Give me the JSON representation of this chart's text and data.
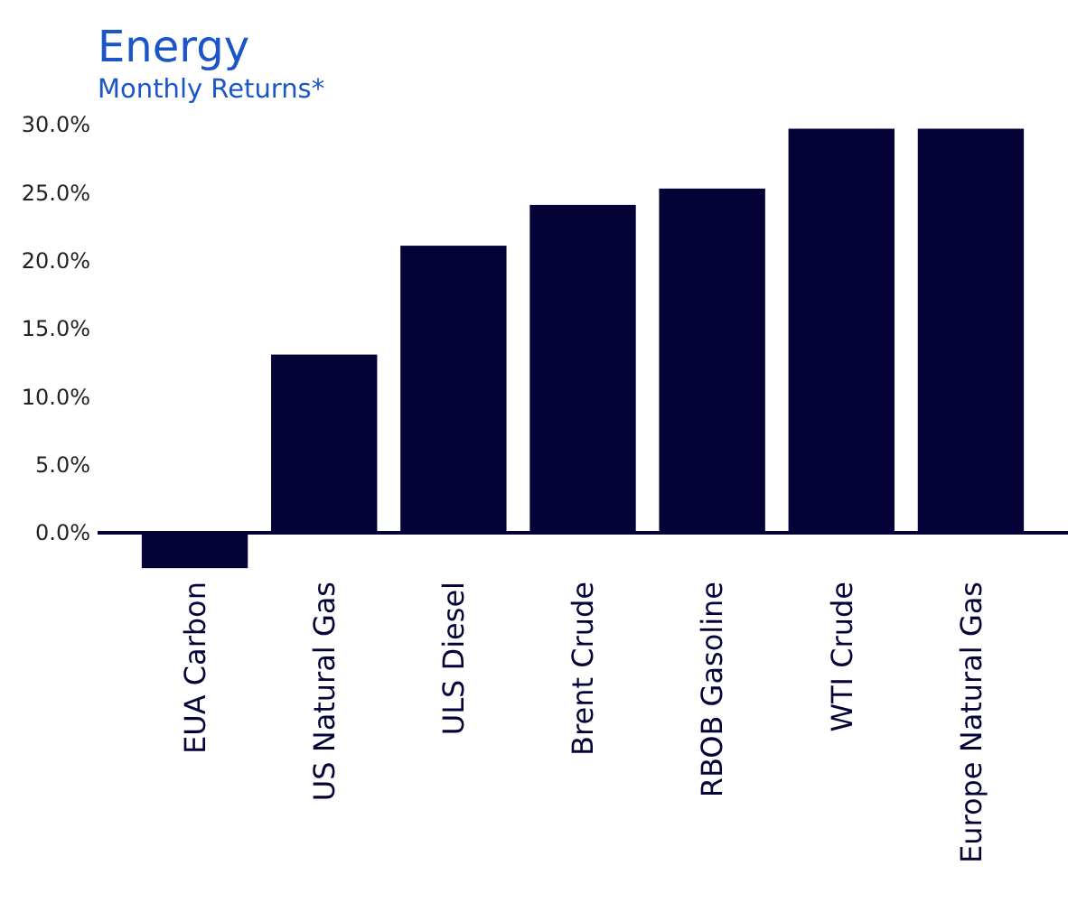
{
  "chart_data": {
    "type": "bar",
    "title": "Energy",
    "subtitle": "Monthly Returns*",
    "categories": [
      "EUA Carbon",
      "US Natural Gas",
      "ULS Diesel",
      "Brent Crude",
      "RBOB Gasoline",
      "WTI Crude",
      "Europe Natural Gas"
    ],
    "values": [
      -2.6,
      13.1,
      21.1,
      24.1,
      25.3,
      29.7,
      29.7
    ],
    "color": "#050238",
    "ylim": [
      -3,
      30
    ],
    "yticks": [
      {
        "value": 0,
        "label": "0.0%"
      },
      {
        "value": 5,
        "label": "5.0%"
      },
      {
        "value": 10,
        "label": "10.0%"
      },
      {
        "value": 15,
        "label": "15.0%"
      },
      {
        "value": 20,
        "label": "20.0%"
      },
      {
        "value": 25,
        "label": "25.0%"
      },
      {
        "value": 30,
        "label": "30.0%"
      }
    ],
    "grid": false
  }
}
